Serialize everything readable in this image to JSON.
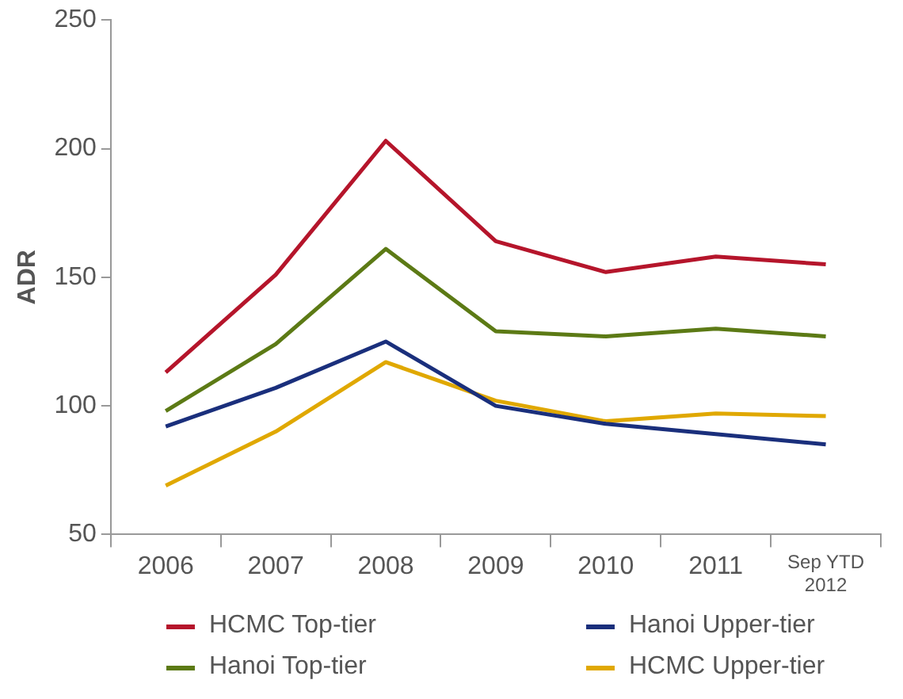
{
  "chart_data": {
    "type": "line",
    "ylabel": "ADR",
    "categories": [
      "2006",
      "2007",
      "2008",
      "2009",
      "2010",
      "2011",
      "Sep YTD\n2012"
    ],
    "series": [
      {
        "name": "HCMC Top-tier",
        "color": "#b5152b",
        "values": [
          113,
          151,
          203,
          164,
          152,
          158,
          155
        ]
      },
      {
        "name": "Hanoi Upper-tier",
        "color": "#1a2f7c",
        "values": [
          92,
          107,
          125,
          100,
          93,
          89,
          85
        ]
      },
      {
        "name": "Hanoi Top-tier",
        "color": "#5c7a15",
        "values": [
          98,
          124,
          161,
          129,
          127,
          130,
          127
        ]
      },
      {
        "name": "HCMC Upper-tier",
        "color": "#e0a800",
        "values": [
          69,
          90,
          117,
          102,
          94,
          97,
          96
        ]
      }
    ],
    "ylim": [
      50,
      250
    ],
    "yticks": [
      50,
      100,
      150,
      200,
      250
    ],
    "grid": false,
    "legend": "bottom",
    "marker": "none",
    "line_style": "solid"
  }
}
